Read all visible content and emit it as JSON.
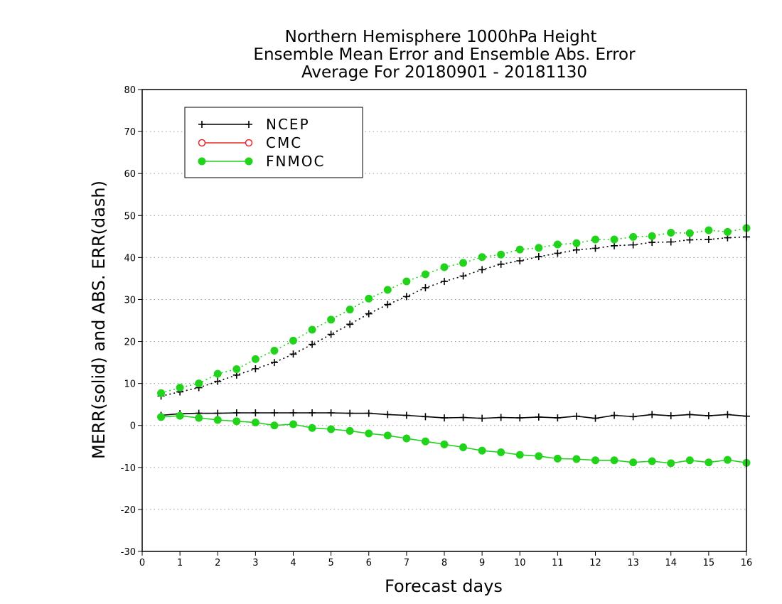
{
  "chart_data": {
    "type": "line",
    "title_lines": [
      "Northern Hemisphere 1000hPa Height",
      "Ensemble Mean Error and Ensemble Abs. Error",
      "Average For 20180901 - 20181130"
    ],
    "xlabel": "Forecast days",
    "ylabel": "MERR(solid) and ABS. ERR(dash)",
    "xlim": [
      0,
      16
    ],
    "ylim": [
      -30,
      80
    ],
    "xticks": [
      "0",
      "1",
      "2",
      "3",
      "4",
      "5",
      "6",
      "7",
      "8",
      "9",
      "10",
      "11",
      "12",
      "13",
      "14",
      "15",
      "16"
    ],
    "yticks": [
      "80",
      "70",
      "60",
      "50",
      "40",
      "30",
      "20",
      "10",
      "0",
      "-10",
      "-20",
      "-30"
    ],
    "grid": "horizontal dotted",
    "legend_position": "top-left",
    "legend": [
      {
        "name": "NCEP",
        "color": "#000000",
        "marker": "plus"
      },
      {
        "name": "CMC",
        "color": "#e8262b",
        "marker": "open-circle"
      },
      {
        "name": "FNMOC",
        "color": "#22d31c",
        "marker": "filled-circle"
      }
    ],
    "x": [
      0.5,
      1,
      1.5,
      2,
      2.5,
      3,
      3.5,
      4,
      4.5,
      5,
      5.5,
      6,
      6.5,
      7,
      7.5,
      8,
      8.5,
      9,
      9.5,
      10,
      10.5,
      11,
      11.5,
      12,
      12.5,
      13,
      13.5,
      14,
      14.5,
      15,
      15.5,
      16
    ],
    "series": [
      {
        "name": "NCEP",
        "style": "solid",
        "color": "#000000",
        "marker": "plus",
        "values": [
          2.4,
          2.8,
          2.9,
          2.9,
          3.0,
          3.0,
          3.0,
          3.0,
          3.0,
          3.0,
          2.9,
          2.9,
          2.6,
          2.4,
          2.1,
          1.8,
          1.9,
          1.7,
          1.9,
          1.8,
          2.0,
          1.8,
          2.2,
          1.7,
          2.4,
          2.1,
          2.6,
          2.3,
          2.6,
          2.3,
          2.6,
          2.2
        ]
      },
      {
        "name": "NCEP",
        "style": "dotted",
        "color": "#000000",
        "marker": "plus",
        "values": [
          7.0,
          8.0,
          9.0,
          10.5,
          12.0,
          13.5,
          15.0,
          17.0,
          19.3,
          21.7,
          24.1,
          26.6,
          28.8,
          30.7,
          32.8,
          34.3,
          35.6,
          37.1,
          38.4,
          39.2,
          40.2,
          41.0,
          41.8,
          42.2,
          42.8,
          43.0,
          43.6,
          43.7,
          44.2,
          44.3,
          44.7,
          44.9
        ]
      },
      {
        "name": "FNMOC",
        "style": "solid",
        "color": "#22d31c",
        "marker": "filled-circle",
        "values": [
          2.0,
          2.3,
          1.8,
          1.3,
          1.0,
          0.7,
          0.0,
          0.3,
          -0.6,
          -0.9,
          -1.3,
          -1.9,
          -2.4,
          -3.1,
          -3.8,
          -4.5,
          -5.2,
          -6.0,
          -6.4,
          -7.0,
          -7.3,
          -7.9,
          -8.0,
          -8.3,
          -8.3,
          -8.8,
          -8.5,
          -9.0,
          -8.3,
          -8.8,
          -8.2,
          -8.9
        ]
      },
      {
        "name": "FNMOC",
        "style": "dotted",
        "color": "#22d31c",
        "marker": "filled-circle",
        "values": [
          7.7,
          9.0,
          10.0,
          12.3,
          13.4,
          15.8,
          17.8,
          20.2,
          22.8,
          25.2,
          27.6,
          30.2,
          32.3,
          34.3,
          36.0,
          37.7,
          38.7,
          40.1,
          40.7,
          41.9,
          42.3,
          43.1,
          43.4,
          44.3,
          44.3,
          44.9,
          45.1,
          45.9,
          45.8,
          46.5,
          46.1,
          47.0
        ]
      }
    ]
  }
}
